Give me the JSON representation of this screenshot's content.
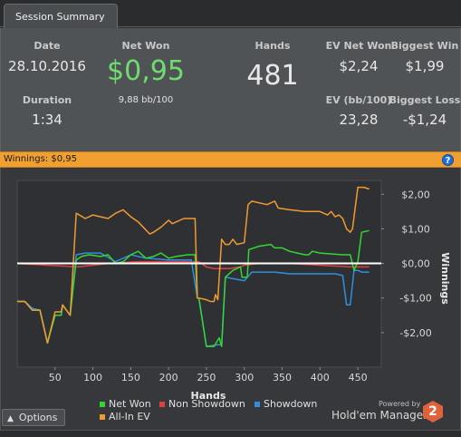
{
  "tab": {
    "label": "Session Summary"
  },
  "summary": {
    "date_label": "Date",
    "date_value": "28.10.2016",
    "duration_label": "Duration",
    "duration_value": "1:34",
    "netwon_label": "Net Won",
    "netwon_value": "$0,95",
    "netwon_sub": "9,88 bb/100",
    "hands_label": "Hands",
    "hands_value": "481",
    "evnetwon_label": "EV Net Won",
    "evnetwon_value": "$2,24",
    "biggestwin_label": "Biggest Win",
    "biggestwin_value": "$1,99",
    "evbb_label": "EV (bb/100)",
    "evbb_value": "23,28",
    "biggestloss_label": "Biggest Loss",
    "biggestloss_value": "-$1,24"
  },
  "banner": {
    "text": "Winnings: $0,95",
    "help_icon": "?"
  },
  "chart_data": {
    "type": "line",
    "xlabel": "Hands",
    "ylabel": "Winnings",
    "xlim": [
      0,
      481
    ],
    "ylim": [
      -3.0,
      2.4
    ],
    "x_ticks": [
      50,
      100,
      150,
      200,
      250,
      300,
      350,
      400,
      450
    ],
    "x_tick_labels": [
      "50",
      "100",
      "150",
      "200",
      "250",
      "300",
      "350",
      "400",
      "450"
    ],
    "y_ticks": [
      2,
      1,
      0,
      -1,
      -2
    ],
    "y_tick_labels": [
      "$2,00",
      "$1,00",
      "$0,00",
      "-$1,00",
      "-$2,00"
    ],
    "zero_line": true,
    "series": [
      {
        "name": "Net Won",
        "color": "#33d633",
        "points": [
          [
            0,
            -1.1
          ],
          [
            10,
            -1.1
          ],
          [
            20,
            -1.35
          ],
          [
            30,
            -1.35
          ],
          [
            40,
            -2.3
          ],
          [
            50,
            -1.5
          ],
          [
            58,
            -1.5
          ],
          [
            60,
            -1.2
          ],
          [
            70,
            -1.5
          ],
          [
            78,
            0.1
          ],
          [
            85,
            0.2
          ],
          [
            95,
            0.25
          ],
          [
            110,
            0.2
          ],
          [
            120,
            0.25
          ],
          [
            130,
            0.0
          ],
          [
            140,
            0.05
          ],
          [
            150,
            0.25
          ],
          [
            160,
            0.35
          ],
          [
            170,
            0.15
          ],
          [
            180,
            0.2
          ],
          [
            190,
            0.3
          ],
          [
            200,
            0.15
          ],
          [
            210,
            0.2
          ],
          [
            225,
            0.25
          ],
          [
            235,
            0.25
          ],
          [
            238,
            -1.0
          ],
          [
            240,
            -1.0
          ],
          [
            250,
            -2.4
          ],
          [
            260,
            -2.4
          ],
          [
            267,
            -2.15
          ],
          [
            270,
            -2.4
          ],
          [
            275,
            -0.4
          ],
          [
            285,
            -0.2
          ],
          [
            295,
            -0.1
          ],
          [
            297,
            -0.4
          ],
          [
            304,
            -0.4
          ],
          [
            306,
            0.4
          ],
          [
            320,
            0.5
          ],
          [
            335,
            0.55
          ],
          [
            340,
            0.45
          ],
          [
            350,
            0.45
          ],
          [
            360,
            0.35
          ],
          [
            370,
            0.3
          ],
          [
            380,
            0.25
          ],
          [
            385,
            0.25
          ],
          [
            390,
            0.35
          ],
          [
            400,
            0.3
          ],
          [
            430,
            0.25
          ],
          [
            440,
            0.25
          ],
          [
            445,
            -0.2
          ],
          [
            450,
            0.05
          ],
          [
            455,
            0.9
          ],
          [
            465,
            0.95
          ]
        ]
      },
      {
        "name": "Non Showdown",
        "color": "#e04040",
        "points": [
          [
            0,
            0.0
          ],
          [
            40,
            -0.05
          ],
          [
            80,
            -0.1
          ],
          [
            100,
            -0.05
          ],
          [
            120,
            0.0
          ],
          [
            160,
            0.05
          ],
          [
            200,
            0.05
          ],
          [
            240,
            0.05
          ],
          [
            250,
            -0.1
          ],
          [
            260,
            -0.15
          ],
          [
            270,
            -0.15
          ],
          [
            280,
            -0.15
          ],
          [
            295,
            -0.1
          ],
          [
            300,
            -0.05
          ],
          [
            320,
            0.0
          ],
          [
            360,
            0.0
          ],
          [
            400,
            -0.05
          ],
          [
            440,
            -0.1
          ],
          [
            465,
            -0.1
          ]
        ]
      },
      {
        "name": "Showdown",
        "color": "#2f8fe0",
        "points": [
          [
            0,
            -1.1
          ],
          [
            10,
            -1.1
          ],
          [
            20,
            -1.3
          ],
          [
            30,
            -1.35
          ],
          [
            40,
            -2.3
          ],
          [
            50,
            -1.5
          ],
          [
            58,
            -1.5
          ],
          [
            60,
            -1.2
          ],
          [
            70,
            -1.5
          ],
          [
            78,
            0.25
          ],
          [
            90,
            0.3
          ],
          [
            110,
            0.3
          ],
          [
            130,
            0.05
          ],
          [
            150,
            0.25
          ],
          [
            170,
            0.15
          ],
          [
            200,
            0.1
          ],
          [
            230,
            0.1
          ],
          [
            238,
            -1.0
          ],
          [
            240,
            -1.0
          ],
          [
            250,
            -2.4
          ],
          [
            265,
            -2.35
          ],
          [
            270,
            -2.35
          ],
          [
            275,
            -0.4
          ],
          [
            300,
            -0.5
          ],
          [
            310,
            -0.25
          ],
          [
            340,
            -0.25
          ],
          [
            360,
            -0.3
          ],
          [
            380,
            -0.3
          ],
          [
            420,
            -0.3
          ],
          [
            430,
            -0.35
          ],
          [
            435,
            -1.2
          ],
          [
            440,
            -1.2
          ],
          [
            445,
            -0.2
          ],
          [
            450,
            -0.2
          ],
          [
            455,
            -0.25
          ],
          [
            465,
            -0.25
          ]
        ]
      },
      {
        "name": "All-In EV",
        "color": "#f09a30",
        "points": [
          [
            0,
            -1.1
          ],
          [
            10,
            -1.1
          ],
          [
            20,
            -1.35
          ],
          [
            30,
            -1.35
          ],
          [
            40,
            -2.3
          ],
          [
            50,
            -1.4
          ],
          [
            58,
            -1.4
          ],
          [
            60,
            -1.2
          ],
          [
            70,
            -1.5
          ],
          [
            78,
            1.45
          ],
          [
            90,
            1.3
          ],
          [
            100,
            1.4
          ],
          [
            110,
            1.35
          ],
          [
            120,
            1.3
          ],
          [
            130,
            1.45
          ],
          [
            140,
            1.55
          ],
          [
            150,
            1.35
          ],
          [
            160,
            1.2
          ],
          [
            175,
            0.85
          ],
          [
            180,
            0.9
          ],
          [
            190,
            1.05
          ],
          [
            200,
            1.25
          ],
          [
            205,
            1.15
          ],
          [
            220,
            1.3
          ],
          [
            235,
            1.3
          ],
          [
            238,
            -1.0
          ],
          [
            240,
            -1.0
          ],
          [
            250,
            -1.05
          ],
          [
            255,
            -1.1
          ],
          [
            260,
            -1.1
          ],
          [
            262,
            -0.9
          ],
          [
            265,
            -1.05
          ],
          [
            270,
            0.7
          ],
          [
            275,
            0.55
          ],
          [
            280,
            0.55
          ],
          [
            285,
            0.7
          ],
          [
            290,
            0.55
          ],
          [
            300,
            0.6
          ],
          [
            305,
            1.7
          ],
          [
            310,
            1.8
          ],
          [
            330,
            1.7
          ],
          [
            340,
            1.8
          ],
          [
            345,
            1.6
          ],
          [
            360,
            1.55
          ],
          [
            380,
            1.5
          ],
          [
            400,
            1.5
          ],
          [
            410,
            1.4
          ],
          [
            415,
            1.5
          ],
          [
            420,
            1.35
          ],
          [
            425,
            1.4
          ],
          [
            430,
            1.3
          ],
          [
            435,
            1.0
          ],
          [
            440,
            0.9
          ],
          [
            443,
            1.0
          ],
          [
            450,
            2.2
          ],
          [
            458,
            2.2
          ],
          [
            465,
            2.15
          ]
        ]
      }
    ]
  },
  "legend": {
    "items": [
      {
        "label": "Net Won",
        "color": "#33d633"
      },
      {
        "label": "Non Showdown",
        "color": "#e04040"
      },
      {
        "label": "Showdown",
        "color": "#2f8fe0"
      },
      {
        "label": "All-In EV",
        "color": "#f09a30"
      }
    ]
  },
  "footer": {
    "options_label": "Options",
    "powered_by": "Powered by",
    "brand": "Hold'em Manager",
    "brand_badge": "2"
  }
}
